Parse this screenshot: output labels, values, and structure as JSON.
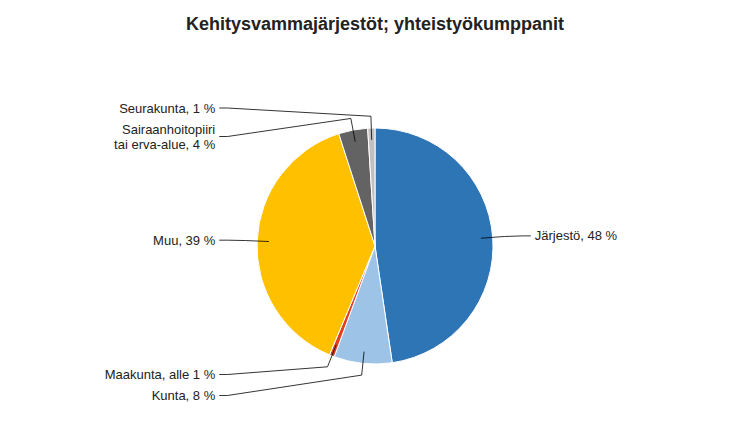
{
  "chart_data": {
    "type": "pie",
    "title": "Kehitysvammajärjestöt; yhteistyökumppanit",
    "categories": [
      "Järjestö, 48 %",
      "Kunta, 8 %",
      "Maakunta, alle 1 %",
      "Muu, 39 %",
      "Sairaanhoitopiiri\ntai erva-alue, 4 %",
      "Seurakunta, 1 %"
    ],
    "values": [
      48,
      8,
      0.7,
      39,
      4,
      1
    ],
    "colors": [
      "#2E75B6",
      "#9DC3E6",
      "#E04020",
      "#FFC000",
      "#636363",
      "#C0C0C0"
    ]
  }
}
